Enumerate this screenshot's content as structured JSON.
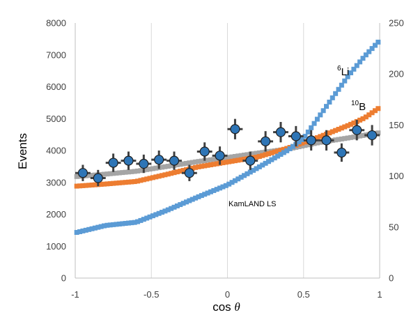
{
  "chart_data": {
    "type": "scatter",
    "xlabel": "cos",
    "xlabel_symbol": "θ",
    "ylabel": "Events",
    "xlim": [
      -1,
      1
    ],
    "ylim_left": [
      0,
      8000
    ],
    "ylim_right": [
      0,
      250
    ],
    "x_ticks": [
      "-1",
      "-0.5",
      "0",
      "0.5",
      "1"
    ],
    "y_ticks_left": [
      "0",
      "1000",
      "2000",
      "3000",
      "4000",
      "5000",
      "6000",
      "7000",
      "8000"
    ],
    "y_ticks_right": [
      "0",
      "50",
      "100",
      "150",
      "200",
      "250"
    ],
    "grid": "vertical",
    "annotation": "KamLAND LS",
    "series": [
      {
        "name": "Li",
        "label_sup": "6",
        "label_base": "Li",
        "axis": "left",
        "color": "#5b9bd5",
        "marker": "square",
        "anchors": [
          [
            -1,
            1420
          ],
          [
            -0.8,
            1650
          ],
          [
            -0.6,
            1750
          ],
          [
            -0.4,
            2120
          ],
          [
            -0.2,
            2530
          ],
          [
            0,
            2920
          ],
          [
            0.2,
            3460
          ],
          [
            0.4,
            4020
          ],
          [
            0.5,
            4380
          ],
          [
            0.6,
            5050
          ],
          [
            0.7,
            5720
          ],
          [
            0.8,
            6380
          ],
          [
            0.9,
            6950
          ],
          [
            1.0,
            7450
          ]
        ]
      },
      {
        "name": "B",
        "label_sup": "10",
        "label_base": "B",
        "axis": "left",
        "color": "#ed7d31",
        "marker": "square",
        "anchors": [
          [
            -1,
            2880
          ],
          [
            -0.8,
            2950
          ],
          [
            -0.6,
            3030
          ],
          [
            -0.4,
            3250
          ],
          [
            -0.2,
            3480
          ],
          [
            0,
            3640
          ],
          [
            0.2,
            3800
          ],
          [
            0.4,
            4080
          ],
          [
            0.6,
            4420
          ],
          [
            0.8,
            4800
          ],
          [
            0.9,
            5020
          ],
          [
            1.0,
            5350
          ]
        ]
      },
      {
        "name": "",
        "axis": "left",
        "color": "#a5a5a5",
        "marker": "square",
        "anchors": [
          [
            -1,
            3180
          ],
          [
            -0.8,
            3260
          ],
          [
            -0.6,
            3350
          ],
          [
            -0.4,
            3500
          ],
          [
            -0.2,
            3650
          ],
          [
            0,
            3780
          ],
          [
            0.2,
            3920
          ],
          [
            0.4,
            4050
          ],
          [
            0.6,
            4250
          ],
          [
            0.8,
            4400
          ],
          [
            1.0,
            4560
          ]
        ]
      },
      {
        "name": "",
        "axis": "right",
        "color": "#2e75b6",
        "marker": "circle-errorbar",
        "points": [
          {
            "x": -0.95,
            "y": 103,
            "err": 8
          },
          {
            "x": -0.85,
            "y": 98,
            "err": 8
          },
          {
            "x": -0.75,
            "y": 113,
            "err": 9
          },
          {
            "x": -0.65,
            "y": 115,
            "err": 9
          },
          {
            "x": -0.55,
            "y": 112,
            "err": 9
          },
          {
            "x": -0.45,
            "y": 116,
            "err": 9
          },
          {
            "x": -0.35,
            "y": 115,
            "err": 9
          },
          {
            "x": -0.25,
            "y": 103,
            "err": 8
          },
          {
            "x": -0.15,
            "y": 124,
            "err": 9
          },
          {
            "x": -0.05,
            "y": 120,
            "err": 9
          },
          {
            "x": 0.05,
            "y": 146,
            "err": 10
          },
          {
            "x": 0.15,
            "y": 115,
            "err": 9
          },
          {
            "x": 0.25,
            "y": 134,
            "err": 10
          },
          {
            "x": 0.35,
            "y": 143,
            "err": 10
          },
          {
            "x": 0.45,
            "y": 139,
            "err": 10
          },
          {
            "x": 0.55,
            "y": 135,
            "err": 10
          },
          {
            "x": 0.65,
            "y": 135,
            "err": 10
          },
          {
            "x": 0.75,
            "y": 123,
            "err": 9
          },
          {
            "x": 0.85,
            "y": 145,
            "err": 10
          },
          {
            "x": 0.95,
            "y": 140,
            "err": 10
          }
        ]
      }
    ]
  }
}
